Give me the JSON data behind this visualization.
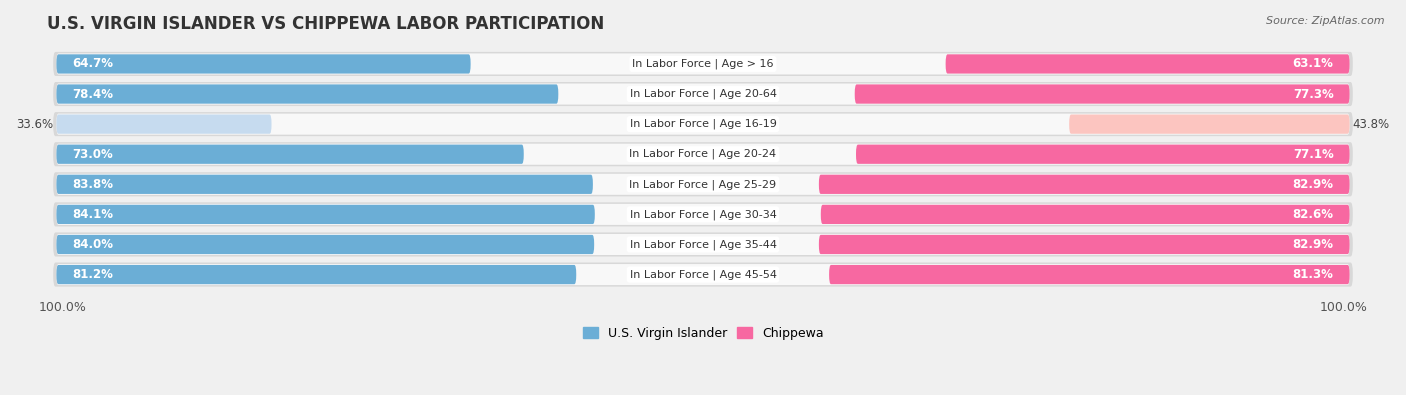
{
  "title": "U.S. VIRGIN ISLANDER VS CHIPPEWA LABOR PARTICIPATION",
  "source": "Source: ZipAtlas.com",
  "categories": [
    "In Labor Force | Age > 16",
    "In Labor Force | Age 20-64",
    "In Labor Force | Age 16-19",
    "In Labor Force | Age 20-24",
    "In Labor Force | Age 25-29",
    "In Labor Force | Age 30-34",
    "In Labor Force | Age 35-44",
    "In Labor Force | Age 45-54"
  ],
  "left_values": [
    64.7,
    78.4,
    33.6,
    73.0,
    83.8,
    84.1,
    84.0,
    81.2
  ],
  "right_values": [
    63.1,
    77.3,
    43.8,
    77.1,
    82.9,
    82.6,
    82.9,
    81.3
  ],
  "left_label": "U.S. Virgin Islander",
  "right_label": "Chippewa",
  "left_color_strong": "#6baed6",
  "left_color_light": "#c6dbef",
  "right_color_strong": "#f768a1",
  "right_color_light": "#fcc5c0",
  "bar_height": 0.72,
  "background_color": "#f0f0f0",
  "row_bg": "#e8e8e8",
  "row_inner_bg": "#ffffff",
  "x_axis_label_left": "100.0%",
  "x_axis_label_right": "100.0%",
  "max_value": 100.0,
  "title_fontsize": 12,
  "value_fontsize": 8.5,
  "category_fontsize": 8.0,
  "light_rows": [
    2
  ]
}
